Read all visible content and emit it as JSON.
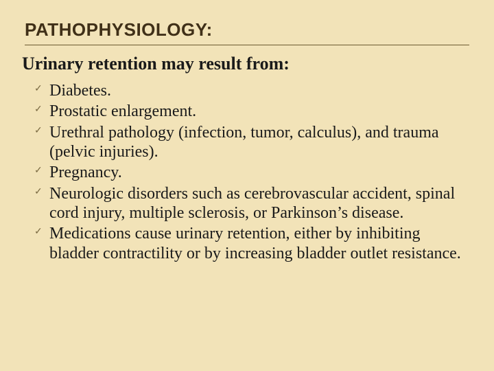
{
  "background_color": "#f2e3b8",
  "title": {
    "text": "PATHOPHYSIOLOGY:",
    "fontsize": 26,
    "color": "#403018"
  },
  "divider_color": "#6b5a30",
  "subtitle": {
    "text": "Urinary retention may result from:",
    "fontsize": 26,
    "color": "#1a1a1a"
  },
  "check_mark": {
    "glyph": "✓",
    "color": "#7a6a42",
    "fontsize": 14
  },
  "bullets": {
    "fontsize": 24,
    "color": "#1a1a1a",
    "line_height": 1.18,
    "items": [
      "Diabetes.",
      "Prostatic enlargement.",
      "Urethral pathology (infection, tumor, calculus), and trauma (pelvic injuries).",
      "Pregnancy.",
      "Neurologic disorders such as cerebrovascular accident, spinal cord injury, multiple sclerosis, or Parkinson’s disease.",
      "Medications cause urinary retention, either by inhibiting bladder contractility or by increasing bladder outlet resistance."
    ]
  }
}
